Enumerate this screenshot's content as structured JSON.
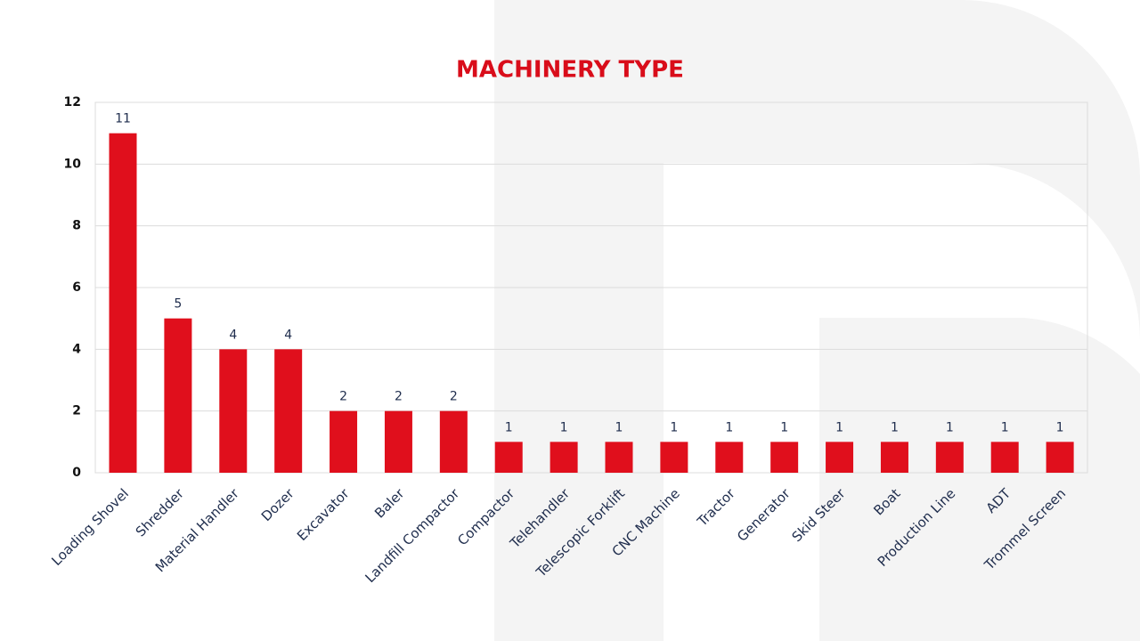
{
  "chart_data": {
    "type": "bar",
    "title": "MACHINERY TYPE",
    "categories": [
      "Loading Shovel",
      "Shredder",
      "Material Handler",
      "Dozer",
      "Excavator",
      "Baler",
      "Landfill Compactor",
      "Compactor",
      "Telehandler",
      "Telescopic Forklift",
      "CNC Machine",
      "Tractor",
      "Generator",
      "Skid Steer",
      "Boat",
      "Production Line",
      "ADT",
      "Trommel Screen"
    ],
    "values": [
      11,
      5,
      4,
      4,
      2,
      2,
      2,
      1,
      1,
      1,
      1,
      1,
      1,
      1,
      1,
      1,
      1,
      1
    ],
    "color": "#e00f1c",
    "ylim": [
      0,
      12
    ],
    "yticks": [
      0,
      2,
      4,
      6,
      8,
      10,
      12
    ],
    "grid": true
  }
}
